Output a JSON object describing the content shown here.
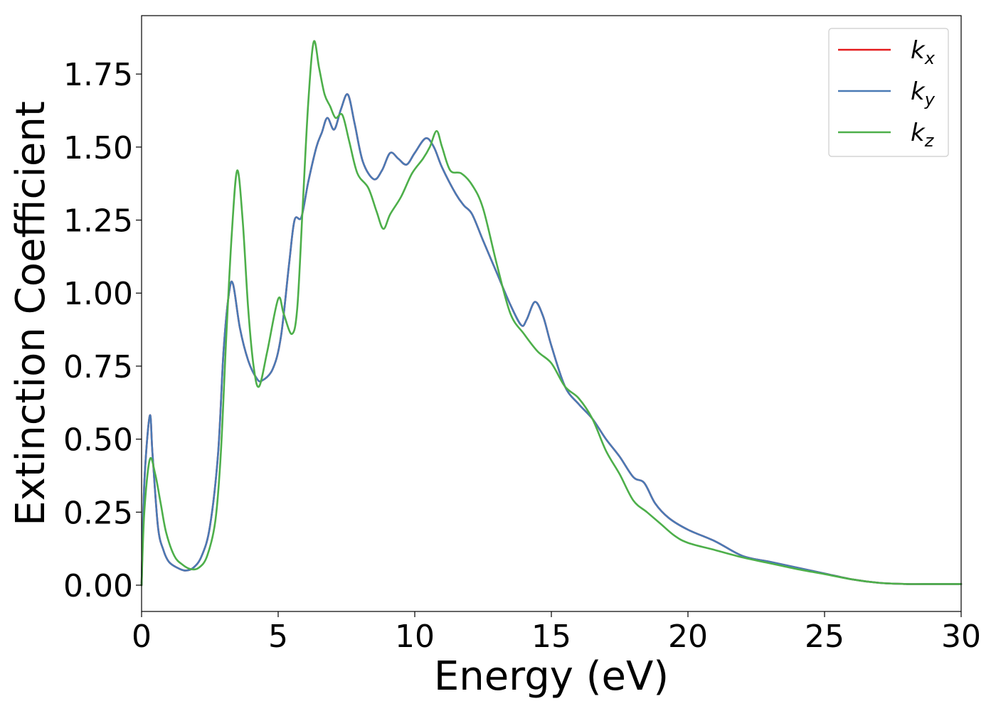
{
  "chart_data": {
    "type": "line",
    "xlabel": "Energy (eV)",
    "ylabel": "Extinction Coefficient",
    "xlim": [
      0,
      30
    ],
    "ylim": [
      -0.09,
      1.95
    ],
    "xticks": [
      0,
      5,
      10,
      15,
      20,
      25,
      30
    ],
    "xtick_labels": [
      "0",
      "5",
      "10",
      "15",
      "20",
      "25",
      "30"
    ],
    "yticks": [
      0.0,
      0.25,
      0.5,
      0.75,
      1.0,
      1.25,
      1.5,
      1.75
    ],
    "ytick_labels": [
      "0.00",
      "0.25",
      "0.50",
      "0.75",
      "1.00",
      "1.25",
      "1.50",
      "1.75"
    ],
    "grid": false,
    "legend_position": "top-right",
    "series": [
      {
        "name": "k",
        "subscript": "x",
        "color": "#e41a1c",
        "points": [
          [
            0,
            0.0
          ],
          [
            0.1,
            0.35
          ],
          [
            0.3,
            0.58
          ],
          [
            0.4,
            0.45
          ],
          [
            0.6,
            0.2
          ],
          [
            0.8,
            0.12
          ],
          [
            1.0,
            0.08
          ],
          [
            1.3,
            0.06
          ],
          [
            1.6,
            0.05
          ],
          [
            1.9,
            0.06
          ],
          [
            2.2,
            0.1
          ],
          [
            2.5,
            0.2
          ],
          [
            2.8,
            0.45
          ],
          [
            3.0,
            0.8
          ],
          [
            3.2,
            1.0
          ],
          [
            3.35,
            1.03
          ],
          [
            3.6,
            0.88
          ],
          [
            3.9,
            0.77
          ],
          [
            4.2,
            0.71
          ],
          [
            4.4,
            0.7
          ],
          [
            4.8,
            0.74
          ],
          [
            5.1,
            0.85
          ],
          [
            5.4,
            1.1
          ],
          [
            5.6,
            1.25
          ],
          [
            5.85,
            1.26
          ],
          [
            6.1,
            1.38
          ],
          [
            6.4,
            1.5
          ],
          [
            6.6,
            1.55
          ],
          [
            6.8,
            1.6
          ],
          [
            7.05,
            1.56
          ],
          [
            7.3,
            1.63
          ],
          [
            7.55,
            1.68
          ],
          [
            7.8,
            1.58
          ],
          [
            8.1,
            1.45
          ],
          [
            8.5,
            1.39
          ],
          [
            8.8,
            1.42
          ],
          [
            9.1,
            1.48
          ],
          [
            9.4,
            1.46
          ],
          [
            9.7,
            1.44
          ],
          [
            10.0,
            1.48
          ],
          [
            10.4,
            1.53
          ],
          [
            10.7,
            1.5
          ],
          [
            11.0,
            1.43
          ],
          [
            11.5,
            1.34
          ],
          [
            11.8,
            1.3
          ],
          [
            12.1,
            1.27
          ],
          [
            12.5,
            1.18
          ],
          [
            13.0,
            1.07
          ],
          [
            13.5,
            0.96
          ],
          [
            13.9,
            0.89
          ],
          [
            14.1,
            0.91
          ],
          [
            14.4,
            0.97
          ],
          [
            14.7,
            0.92
          ],
          [
            15.0,
            0.82
          ],
          [
            15.5,
            0.68
          ],
          [
            16.0,
            0.62
          ],
          [
            16.5,
            0.57
          ],
          [
            17.0,
            0.5
          ],
          [
            17.5,
            0.44
          ],
          [
            18.0,
            0.37
          ],
          [
            18.4,
            0.35
          ],
          [
            18.8,
            0.28
          ],
          [
            19.3,
            0.23
          ],
          [
            20.0,
            0.19
          ],
          [
            21.0,
            0.15
          ],
          [
            22.0,
            0.1
          ],
          [
            23.0,
            0.08
          ],
          [
            24.0,
            0.06
          ],
          [
            25.0,
            0.04
          ],
          [
            26.0,
            0.02
          ],
          [
            27.0,
            0.008
          ],
          [
            28.0,
            0.004
          ],
          [
            29.0,
            0.004
          ],
          [
            30.0,
            0.004
          ]
        ]
      },
      {
        "name": "k",
        "subscript": "y",
        "color": "#4a7ab5",
        "points": [
          [
            0,
            0.0
          ],
          [
            0.1,
            0.35
          ],
          [
            0.3,
            0.58
          ],
          [
            0.4,
            0.45
          ],
          [
            0.6,
            0.2
          ],
          [
            0.8,
            0.12
          ],
          [
            1.0,
            0.08
          ],
          [
            1.3,
            0.06
          ],
          [
            1.6,
            0.05
          ],
          [
            1.9,
            0.06
          ],
          [
            2.2,
            0.1
          ],
          [
            2.5,
            0.2
          ],
          [
            2.8,
            0.45
          ],
          [
            3.0,
            0.8
          ],
          [
            3.2,
            1.0
          ],
          [
            3.35,
            1.03
          ],
          [
            3.6,
            0.88
          ],
          [
            3.9,
            0.77
          ],
          [
            4.2,
            0.71
          ],
          [
            4.4,
            0.7
          ],
          [
            4.8,
            0.74
          ],
          [
            5.1,
            0.85
          ],
          [
            5.4,
            1.1
          ],
          [
            5.6,
            1.25
          ],
          [
            5.85,
            1.26
          ],
          [
            6.1,
            1.38
          ],
          [
            6.4,
            1.5
          ],
          [
            6.6,
            1.55
          ],
          [
            6.8,
            1.6
          ],
          [
            7.05,
            1.56
          ],
          [
            7.3,
            1.63
          ],
          [
            7.55,
            1.68
          ],
          [
            7.8,
            1.58
          ],
          [
            8.1,
            1.45
          ],
          [
            8.5,
            1.39
          ],
          [
            8.8,
            1.42
          ],
          [
            9.1,
            1.48
          ],
          [
            9.4,
            1.46
          ],
          [
            9.7,
            1.44
          ],
          [
            10.0,
            1.48
          ],
          [
            10.4,
            1.53
          ],
          [
            10.7,
            1.5
          ],
          [
            11.0,
            1.43
          ],
          [
            11.5,
            1.34
          ],
          [
            11.8,
            1.3
          ],
          [
            12.1,
            1.27
          ],
          [
            12.5,
            1.18
          ],
          [
            13.0,
            1.07
          ],
          [
            13.5,
            0.96
          ],
          [
            13.9,
            0.89
          ],
          [
            14.1,
            0.91
          ],
          [
            14.4,
            0.97
          ],
          [
            14.7,
            0.92
          ],
          [
            15.0,
            0.82
          ],
          [
            15.5,
            0.68
          ],
          [
            16.0,
            0.62
          ],
          [
            16.5,
            0.57
          ],
          [
            17.0,
            0.5
          ],
          [
            17.5,
            0.44
          ],
          [
            18.0,
            0.37
          ],
          [
            18.4,
            0.35
          ],
          [
            18.8,
            0.28
          ],
          [
            19.3,
            0.23
          ],
          [
            20.0,
            0.19
          ],
          [
            21.0,
            0.15
          ],
          [
            22.0,
            0.1
          ],
          [
            23.0,
            0.08
          ],
          [
            24.0,
            0.06
          ],
          [
            25.0,
            0.04
          ],
          [
            26.0,
            0.02
          ],
          [
            27.0,
            0.008
          ],
          [
            28.0,
            0.004
          ],
          [
            29.0,
            0.004
          ],
          [
            30.0,
            0.004
          ]
        ]
      },
      {
        "name": "k",
        "subscript": "z",
        "color": "#4daf4a",
        "points": [
          [
            0,
            0.0
          ],
          [
            0.1,
            0.25
          ],
          [
            0.3,
            0.43
          ],
          [
            0.5,
            0.38
          ],
          [
            0.7,
            0.28
          ],
          [
            0.9,
            0.18
          ],
          [
            1.2,
            0.1
          ],
          [
            1.5,
            0.07
          ],
          [
            1.8,
            0.055
          ],
          [
            2.1,
            0.06
          ],
          [
            2.4,
            0.1
          ],
          [
            2.7,
            0.22
          ],
          [
            2.9,
            0.45
          ],
          [
            3.1,
            0.85
          ],
          [
            3.3,
            1.2
          ],
          [
            3.5,
            1.42
          ],
          [
            3.7,
            1.25
          ],
          [
            3.9,
            0.95
          ],
          [
            4.1,
            0.75
          ],
          [
            4.3,
            0.68
          ],
          [
            4.6,
            0.8
          ],
          [
            5.0,
            0.98
          ],
          [
            5.2,
            0.93
          ],
          [
            5.5,
            0.86
          ],
          [
            5.7,
            0.95
          ],
          [
            5.9,
            1.3
          ],
          [
            6.1,
            1.65
          ],
          [
            6.3,
            1.86
          ],
          [
            6.5,
            1.77
          ],
          [
            6.7,
            1.68
          ],
          [
            6.9,
            1.64
          ],
          [
            7.1,
            1.6
          ],
          [
            7.35,
            1.61
          ],
          [
            7.6,
            1.52
          ],
          [
            7.9,
            1.41
          ],
          [
            8.3,
            1.36
          ],
          [
            8.6,
            1.28
          ],
          [
            8.85,
            1.22
          ],
          [
            9.1,
            1.27
          ],
          [
            9.5,
            1.33
          ],
          [
            9.9,
            1.41
          ],
          [
            10.3,
            1.46
          ],
          [
            10.55,
            1.5
          ],
          [
            10.8,
            1.555
          ],
          [
            11.0,
            1.5
          ],
          [
            11.3,
            1.42
          ],
          [
            11.7,
            1.41
          ],
          [
            12.1,
            1.37
          ],
          [
            12.5,
            1.29
          ],
          [
            13.0,
            1.1
          ],
          [
            13.5,
            0.93
          ],
          [
            14.0,
            0.86
          ],
          [
            14.5,
            0.8
          ],
          [
            15.0,
            0.76
          ],
          [
            15.5,
            0.68
          ],
          [
            16.0,
            0.64
          ],
          [
            16.5,
            0.57
          ],
          [
            17.0,
            0.46
          ],
          [
            17.5,
            0.38
          ],
          [
            18.0,
            0.29
          ],
          [
            18.5,
            0.25
          ],
          [
            19.0,
            0.21
          ],
          [
            19.5,
            0.17
          ],
          [
            20.0,
            0.145
          ],
          [
            21.0,
            0.12
          ],
          [
            22.0,
            0.095
          ],
          [
            23.0,
            0.075
          ],
          [
            24.0,
            0.055
          ],
          [
            25.0,
            0.038
          ],
          [
            26.0,
            0.02
          ],
          [
            27.0,
            0.008
          ],
          [
            28.0,
            0.004
          ],
          [
            29.0,
            0.004
          ],
          [
            30.0,
            0.004
          ]
        ]
      }
    ]
  }
}
